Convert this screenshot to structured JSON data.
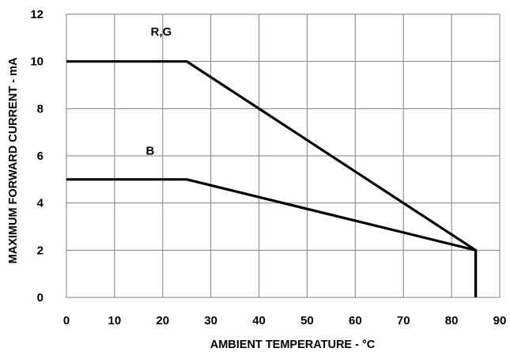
{
  "chart_data": {
    "type": "line",
    "title": "",
    "xlabel": "AMBIENT TEMPERATURE - °C",
    "ylabel": "MAXIMUM FORWARD CURRENT - mA",
    "xlim": [
      0,
      90
    ],
    "ylim": [
      0,
      12
    ],
    "xticks": [
      0,
      10,
      20,
      30,
      40,
      50,
      60,
      70,
      80,
      90
    ],
    "yticks": [
      0,
      2,
      4,
      6,
      8,
      10,
      12
    ],
    "grid": true,
    "series": [
      {
        "name": "R,G",
        "x": [
          0,
          25,
          85,
          85
        ],
        "y": [
          10,
          10,
          2,
          0
        ]
      },
      {
        "name": "B",
        "x": [
          0,
          25,
          85,
          85
        ],
        "y": [
          5,
          5,
          2,
          0
        ]
      }
    ]
  }
}
